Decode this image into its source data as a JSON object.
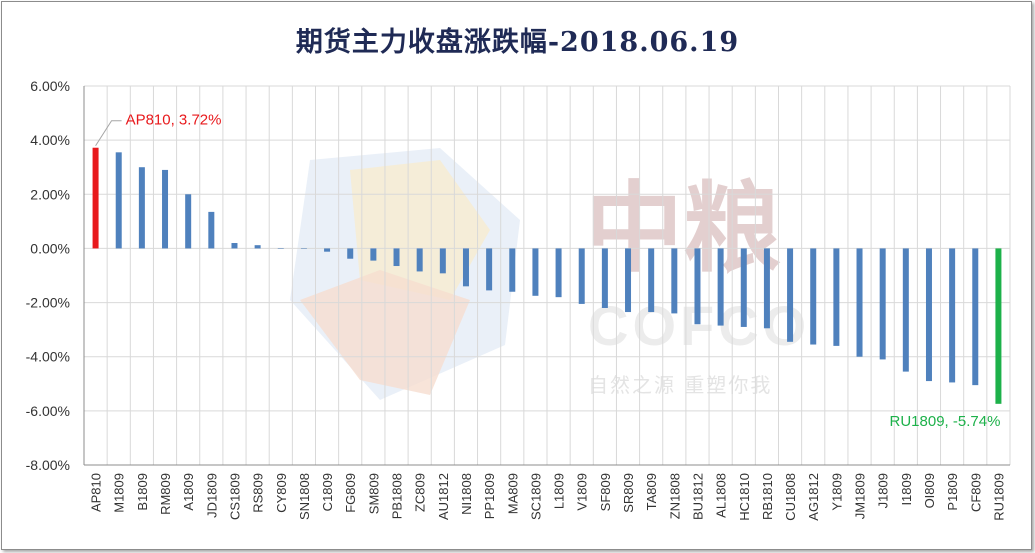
{
  "title": "期货主力收盘涨跌幅-2018.06.19",
  "colors": {
    "positive_max": "#e8191c",
    "negative_max": "#1db14a",
    "default_bar": "#4f81bd",
    "grid": "#d9d9d9",
    "axis": "#8c8c8c",
    "title": "#1f2a55"
  },
  "watermark": {
    "brand_cn": "中粮",
    "brand_en": "COFCO",
    "slogan": "自然之源 重塑你我"
  },
  "chart_data": {
    "type": "bar",
    "title": "期货主力收盘涨跌幅-2018.06.19",
    "xlabel": "",
    "ylabel": "",
    "ylim": [
      -8,
      6
    ],
    "yticks": [
      "6.00%",
      "4.00%",
      "2.00%",
      "0.00%",
      "-2.00%",
      "-4.00%",
      "-6.00%",
      "-8.00%"
    ],
    "ytick_values": [
      6,
      4,
      2,
      0,
      -2,
      -4,
      -6,
      -8
    ],
    "grid": true,
    "legend": "none",
    "categories": [
      "AP810",
      "M1809",
      "B1809",
      "RM809",
      "A1809",
      "JD1809",
      "CS1809",
      "RS809",
      "CY809",
      "SN1808",
      "C1809",
      "FG809",
      "SM809",
      "PB1808",
      "ZC809",
      "AU1812",
      "NI1808",
      "PP1809",
      "MA809",
      "SC1809",
      "L1809",
      "V1809",
      "SF809",
      "SR809",
      "TA809",
      "ZN1808",
      "BU1812",
      "AL1808",
      "HC1810",
      "RB1810",
      "CU1808",
      "AG1812",
      "Y1809",
      "JM1809",
      "J1809",
      "I1809",
      "OI809",
      "P1809",
      "CF809",
      "RU1809"
    ],
    "values": [
      3.72,
      3.55,
      3.0,
      2.9,
      2.0,
      1.35,
      0.2,
      0.12,
      0.0,
      0.0,
      -0.12,
      -0.38,
      -0.45,
      -0.65,
      -0.85,
      -0.92,
      -1.4,
      -1.55,
      -1.6,
      -1.75,
      -1.8,
      -2.05,
      -2.2,
      -2.35,
      -2.35,
      -2.4,
      -2.8,
      -2.85,
      -2.9,
      -2.95,
      -3.45,
      -3.55,
      -3.6,
      -4.0,
      -4.1,
      -4.55,
      -4.9,
      -4.95,
      -5.05,
      -5.74
    ],
    "annotations": [
      {
        "category": "AP810",
        "text": "AP810, 3.72%",
        "color": "#e8191c"
      },
      {
        "category": "RU1809",
        "text": "RU1809, -5.74%",
        "color": "#1db14a"
      }
    ]
  }
}
